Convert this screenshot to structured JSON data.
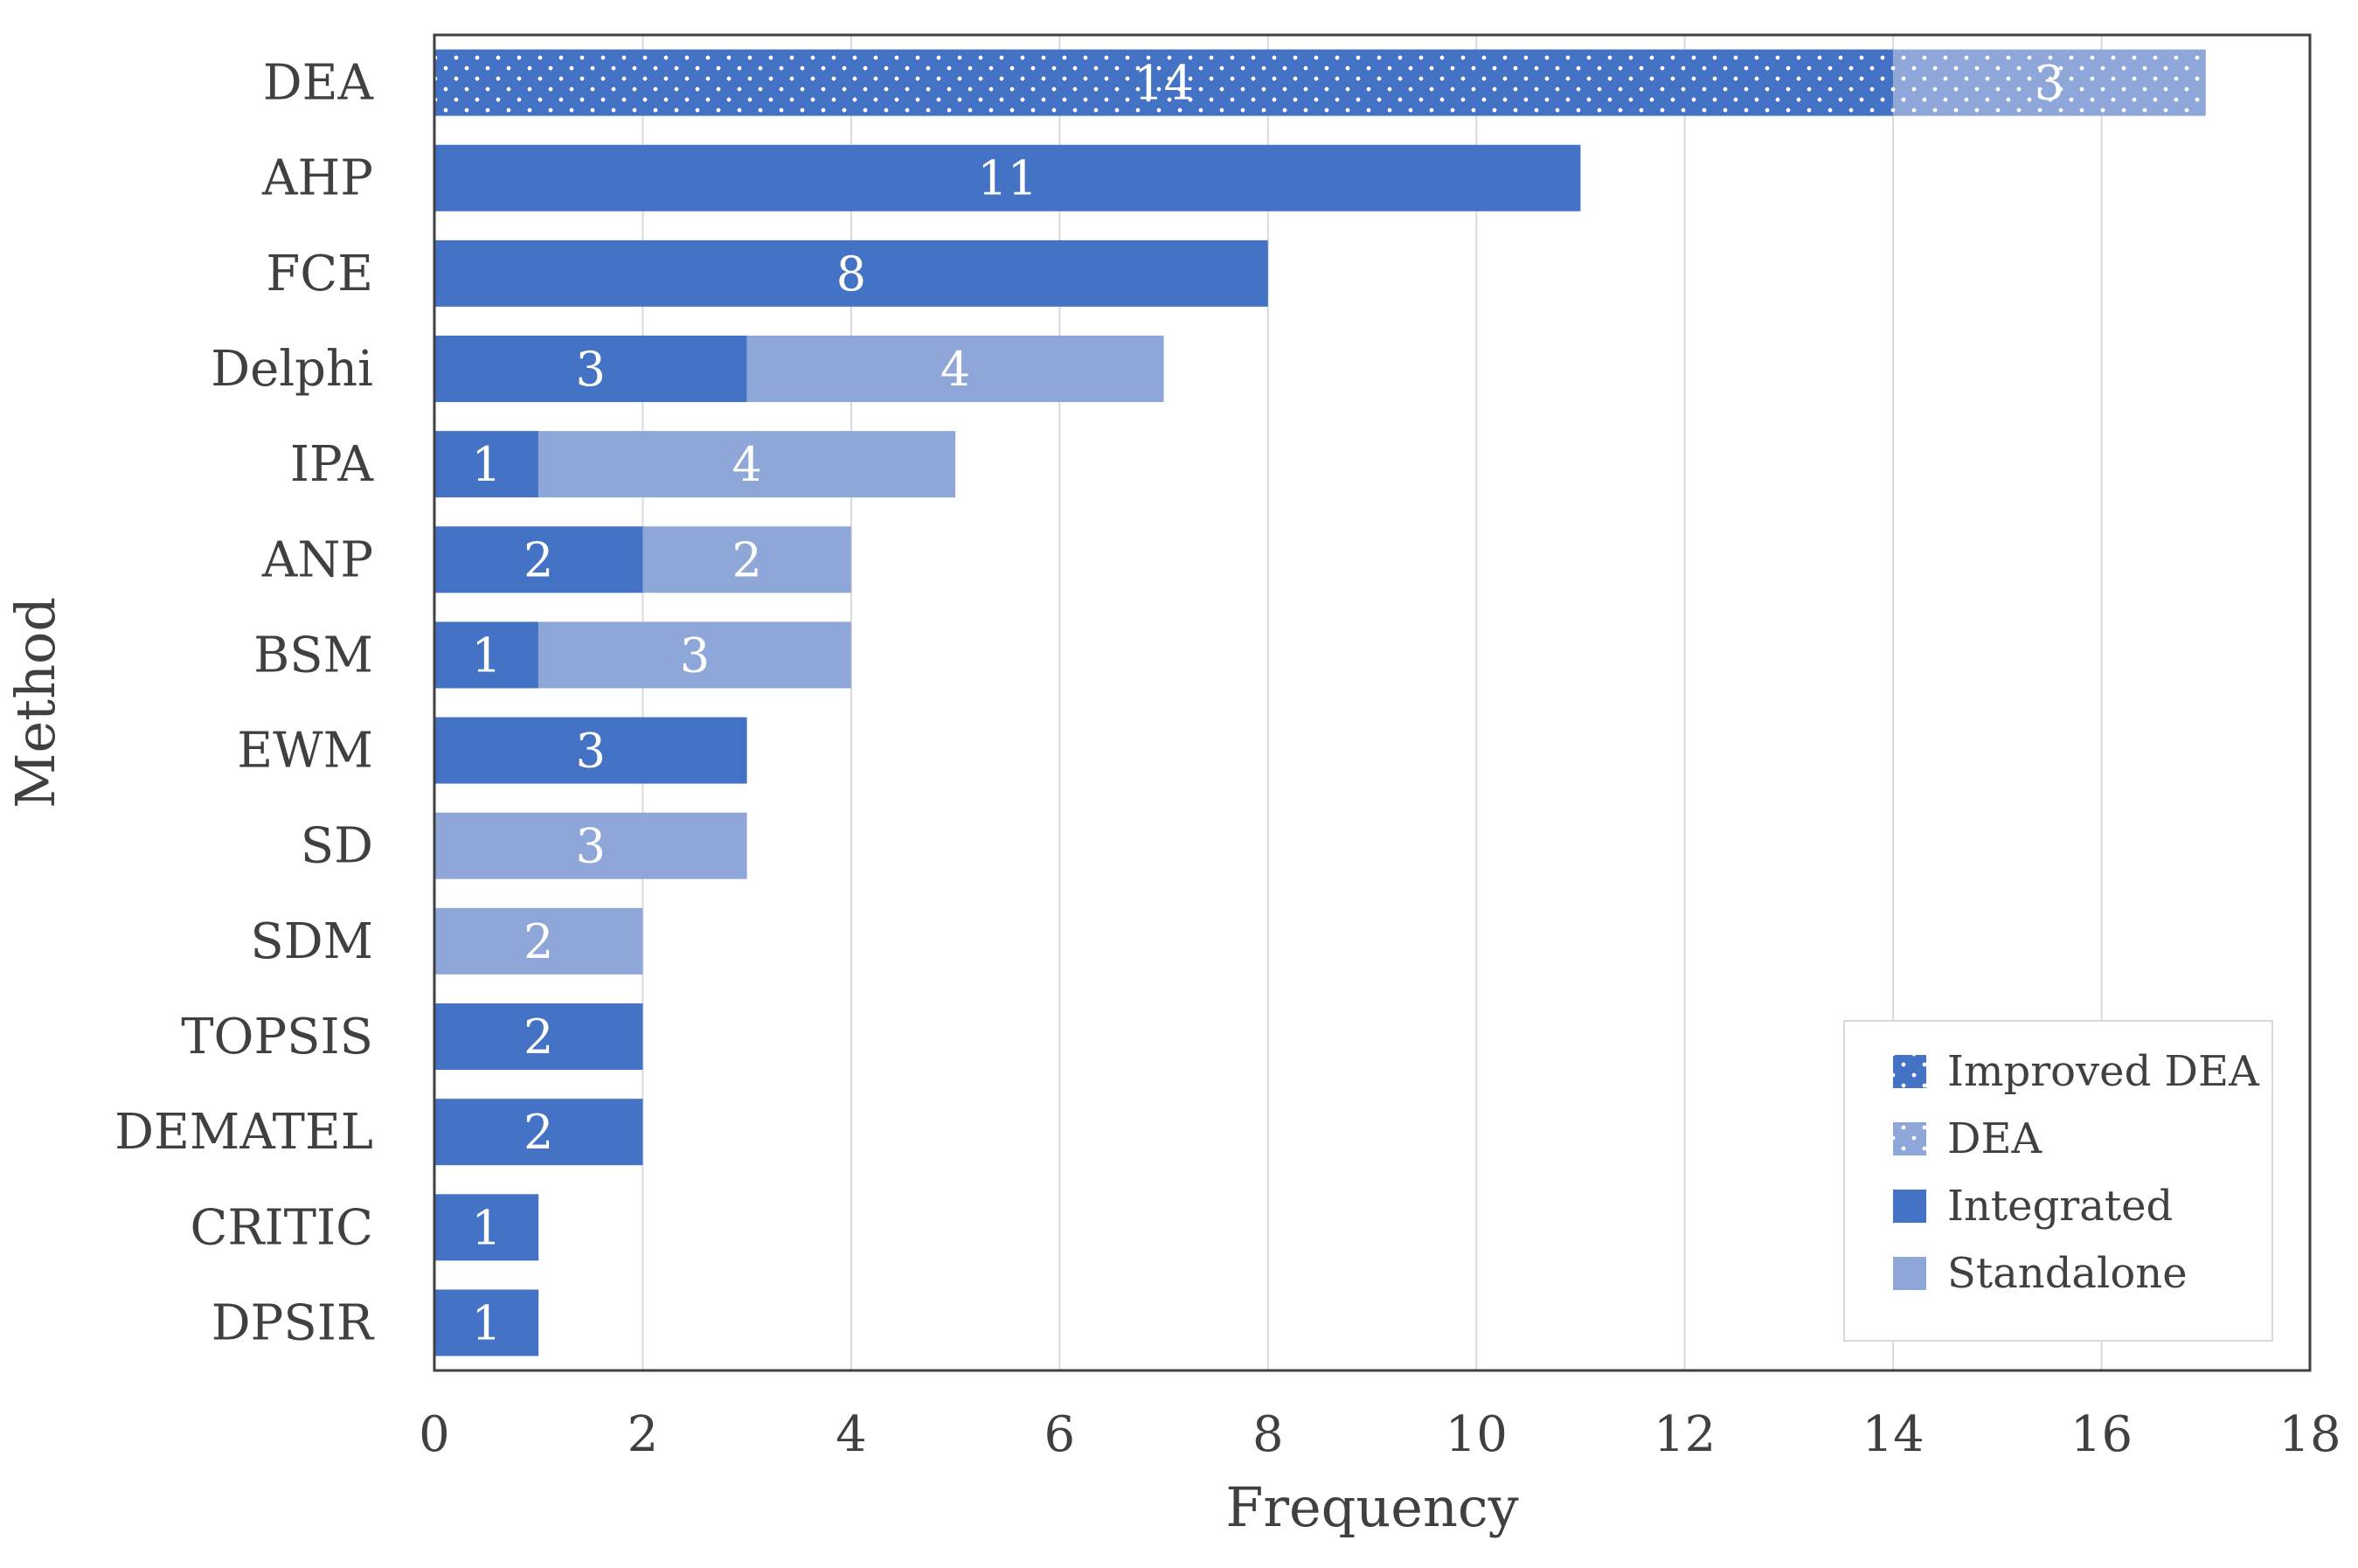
{
  "chart_data": {
    "type": "bar",
    "orientation": "horizontal",
    "stacked": true,
    "xlabel": "Frequency",
    "ylabel": "Method",
    "xlim": [
      0,
      18
    ],
    "xticks": [
      0,
      2,
      4,
      6,
      8,
      10,
      12,
      14,
      16,
      18
    ],
    "grid": "vertical",
    "legend_position": "bottom-right",
    "categories": [
      "DEA",
      "AHP",
      "FCE",
      "Delphi",
      "IPA",
      "ANP",
      "BSM",
      "EWM",
      "SD",
      "SDM",
      "TOPSIS",
      "DEMATEL",
      "CRITIC",
      "DPSIR"
    ],
    "series": [
      {
        "name": "Improved DEA",
        "color": "#4472c4",
        "pattern": "dotted",
        "values": [
          14,
          0,
          0,
          0,
          0,
          0,
          0,
          0,
          0,
          0,
          0,
          0,
          0,
          0
        ]
      },
      {
        "name": "DEA",
        "color": "#8fa7d8",
        "pattern": "dotted",
        "values": [
          3,
          0,
          0,
          0,
          0,
          0,
          0,
          0,
          0,
          0,
          0,
          0,
          0,
          0
        ]
      },
      {
        "name": "Integrated",
        "color": "#4472c4",
        "pattern": "solid",
        "values": [
          0,
          11,
          8,
          3,
          1,
          2,
          1,
          3,
          0,
          0,
          2,
          2,
          1,
          1
        ]
      },
      {
        "name": "Standalone",
        "color": "#8fa7d8",
        "pattern": "solid",
        "values": [
          0,
          0,
          0,
          4,
          4,
          2,
          3,
          0,
          3,
          2,
          0,
          0,
          0,
          0
        ]
      }
    ]
  }
}
